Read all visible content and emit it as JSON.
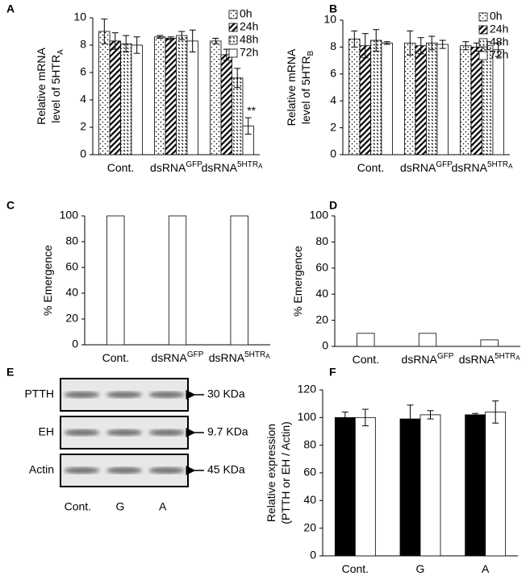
{
  "chart_data": [
    {
      "type": "bar",
      "panel": "A",
      "ylabel": [
        "Relative mRNA",
        "level of 5HTR"
      ],
      "ylabel_sub": "A",
      "categories": [
        "Cont.",
        {
          "base": "dsRNA",
          "sup": "GFP"
        },
        {
          "base": "dsRNA",
          "sup": "5HTR",
          "sup_sub": "A"
        }
      ],
      "ylim": [
        0,
        10
      ],
      "yticks": [
        0,
        2,
        4,
        6,
        8,
        10
      ],
      "grid": false,
      "legend": "upper right",
      "series": [
        {
          "name": "0h",
          "color": "#ffffff",
          "pattern": "dots",
          "values": [
            9.0,
            8.6,
            8.3
          ],
          "errors": [
            0.9,
            0.1,
            0.2
          ]
        },
        {
          "name": "24h",
          "color": "#ffffff",
          "pattern": "hatch",
          "values": [
            8.3,
            8.5,
            7.3
          ],
          "errors": [
            0.6,
            0.1,
            0.4
          ]
        },
        {
          "name": "48h",
          "color": "#ffffff",
          "pattern": "dashes",
          "values": [
            8.1,
            8.7,
            5.6
          ],
          "errors": [
            0.6,
            0.3,
            0.7
          ]
        },
        {
          "name": "72h",
          "color": "#ffffff",
          "pattern": "none",
          "values": [
            8.0,
            8.3,
            2.1
          ],
          "errors": [
            0.6,
            0.8,
            0.6
          ]
        }
      ],
      "annotations": [
        {
          "text": "**",
          "series": 3,
          "category": 2
        }
      ]
    },
    {
      "type": "bar",
      "panel": "B",
      "ylabel": [
        "Relative mRNA",
        "level of 5HTR"
      ],
      "ylabel_sub": "B",
      "categories": [
        "Cont.",
        {
          "base": "dsRNA",
          "sup": "GFP"
        },
        {
          "base": "dsRNA",
          "sup": "5HTR",
          "sup_sub": "A"
        }
      ],
      "ylim": [
        0,
        10
      ],
      "yticks": [
        0,
        2,
        4,
        6,
        8,
        10
      ],
      "grid": false,
      "legend": "upper right",
      "series": [
        {
          "name": "0h",
          "color": "#ffffff",
          "pattern": "dots",
          "values": [
            8.6,
            8.3,
            8.1
          ],
          "errors": [
            0.6,
            0.9,
            0.3
          ]
        },
        {
          "name": "24h",
          "color": "#ffffff",
          "pattern": "hatch",
          "values": [
            8.1,
            8.1,
            8.0
          ],
          "errors": [
            0.9,
            0.6,
            0.3
          ]
        },
        {
          "name": "48h",
          "color": "#ffffff",
          "pattern": "dashes",
          "values": [
            8.5,
            8.3,
            8.1
          ],
          "errors": [
            0.8,
            0.5,
            0.3
          ]
        },
        {
          "name": "72h",
          "color": "#ffffff",
          "pattern": "none",
          "values": [
            8.3,
            8.2,
            7.8
          ],
          "errors": [
            0.1,
            0.3,
            0.5
          ]
        }
      ]
    },
    {
      "type": "bar",
      "panel": "C",
      "ylabel": [
        "% Emergence"
      ],
      "categories": [
        "Cont.",
        {
          "base": "dsRNA",
          "sup": "GFP"
        },
        {
          "base": "dsRNA",
          "sup": "5HTR",
          "sup_sub": "A"
        }
      ],
      "ylim": [
        0,
        100
      ],
      "yticks": [
        0,
        20,
        40,
        60,
        80,
        100
      ],
      "grid": false,
      "series": [
        {
          "color": "#ffffff",
          "pattern": "none",
          "values": [
            100,
            100,
            100
          ]
        }
      ]
    },
    {
      "type": "bar",
      "panel": "D",
      "ylabel": [
        "% Emergence"
      ],
      "categories": [
        "Cont.",
        {
          "base": "dsRNA",
          "sup": "GFP"
        },
        {
          "base": "dsRNA",
          "sup": "5HTR",
          "sup_sub": "A"
        }
      ],
      "ylim": [
        0,
        100
      ],
      "yticks": [
        0,
        20,
        40,
        60,
        80,
        100
      ],
      "grid": false,
      "series": [
        {
          "color": "#ffffff",
          "pattern": "none",
          "values": [
            10,
            10,
            5
          ]
        }
      ]
    },
    {
      "type": "blot",
      "panel": "E",
      "lanes": [
        "Cont.",
        "G",
        "A"
      ],
      "rows": [
        {
          "name": "PTTH",
          "size": "30 KDa"
        },
        {
          "name": "EH",
          "size": "9.7 KDa"
        },
        {
          "name": "Actin",
          "size": "45 KDa"
        }
      ]
    },
    {
      "type": "bar",
      "panel": "F",
      "ylabel": [
        "Relative expression",
        "(PTTH or EH / Actin)"
      ],
      "categories": [
        "Cont.",
        "G",
        "A"
      ],
      "ylim": [
        0,
        120
      ],
      "yticks": [
        0,
        20,
        40,
        60,
        80,
        100,
        120
      ],
      "grid": false,
      "series": [
        {
          "color": "#000000",
          "pattern": "none",
          "values": [
            100,
            99,
            102
          ],
          "errors": [
            4,
            10,
            1
          ]
        },
        {
          "color": "#ffffff",
          "pattern": "none",
          "values": [
            100,
            102,
            104
          ],
          "errors": [
            6,
            3,
            8
          ]
        }
      ]
    }
  ]
}
